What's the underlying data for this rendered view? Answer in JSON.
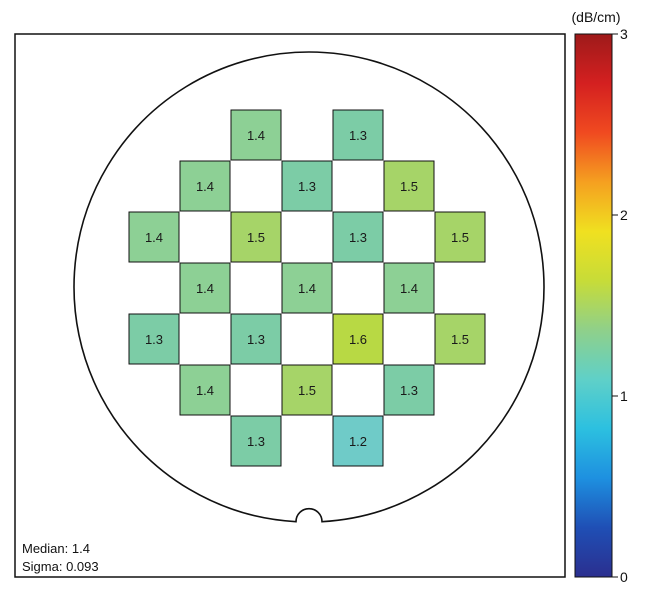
{
  "chart_data": {
    "type": "heatmap",
    "unit": "(dB/cm)",
    "colorbar": {
      "min": 0,
      "max": 3,
      "ticks": [
        "0",
        "1",
        "2",
        "3"
      ]
    },
    "stats": {
      "median": "Median: 1.4",
      "sigma": "Sigma: 0.093"
    },
    "cells": [
      {
        "row": 0,
        "col": 2,
        "value": 1.4,
        "label": "1.4"
      },
      {
        "row": 0,
        "col": 4,
        "value": 1.3,
        "label": "1.3"
      },
      {
        "row": 1,
        "col": 1,
        "value": 1.4,
        "label": "1.4"
      },
      {
        "row": 1,
        "col": 3,
        "value": 1.3,
        "label": "1.3"
      },
      {
        "row": 1,
        "col": 5,
        "value": 1.5,
        "label": "1.5"
      },
      {
        "row": 2,
        "col": 0,
        "value": 1.4,
        "label": "1.4"
      },
      {
        "row": 2,
        "col": 2,
        "value": 1.5,
        "label": "1.5"
      },
      {
        "row": 2,
        "col": 4,
        "value": 1.3,
        "label": "1.3"
      },
      {
        "row": 2,
        "col": 6,
        "value": 1.5,
        "label": "1.5"
      },
      {
        "row": 3,
        "col": 1,
        "value": 1.4,
        "label": "1.4"
      },
      {
        "row": 3,
        "col": 3,
        "value": 1.4,
        "label": "1.4"
      },
      {
        "row": 3,
        "col": 5,
        "value": 1.4,
        "label": "1.4"
      },
      {
        "row": 4,
        "col": 0,
        "value": 1.3,
        "label": "1.3"
      },
      {
        "row": 4,
        "col": 2,
        "value": 1.3,
        "label": "1.3"
      },
      {
        "row": 4,
        "col": 4,
        "value": 1.6,
        "label": "1.6"
      },
      {
        "row": 4,
        "col": 6,
        "value": 1.5,
        "label": "1.5"
      },
      {
        "row": 5,
        "col": 1,
        "value": 1.4,
        "label": "1.4"
      },
      {
        "row": 5,
        "col": 3,
        "value": 1.5,
        "label": "1.5"
      },
      {
        "row": 5,
        "col": 5,
        "value": 1.3,
        "label": "1.3"
      },
      {
        "row": 6,
        "col": 2,
        "value": 1.3,
        "label": "1.3"
      },
      {
        "row": 6,
        "col": 4,
        "value": 1.2,
        "label": "1.2"
      }
    ],
    "colors": {
      "scale": [
        "#2b2f8f",
        "#1f4fb5",
        "#1e90e0",
        "#2cc0e0",
        "#5fd0c8",
        "#8fd08a",
        "#c7dc38",
        "#f0e020",
        "#f5a020",
        "#f04a20",
        "#d42020",
        "#9e1a1a"
      ],
      "cells": {
        "1.2": "#6fcbc8",
        "1.3": "#7ccca6",
        "1.4": "#8dd095",
        "1.5": "#a6d468",
        "1.6": "#b8d944"
      }
    }
  }
}
